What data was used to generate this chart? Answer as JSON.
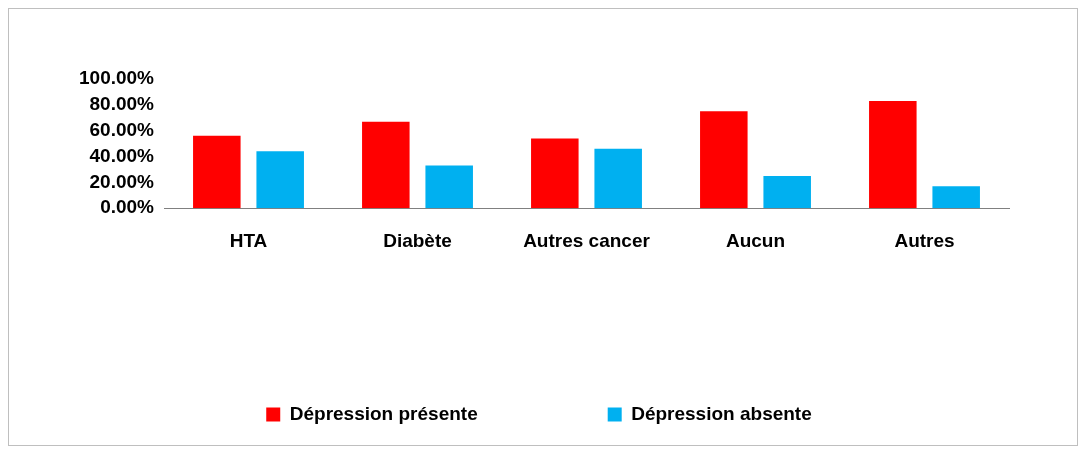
{
  "chart_data": {
    "type": "bar",
    "categories": [
      "HTA",
      "Diabète",
      "Autres cancer",
      "Aucun",
      "Autres"
    ],
    "series": [
      {
        "name": "Dépression présente",
        "color": "#ff0000",
        "values": [
          56,
          67,
          54,
          75,
          83
        ]
      },
      {
        "name": "Dépression absente",
        "color": "#00b0f0",
        "values": [
          44,
          33,
          46,
          25,
          17
        ]
      }
    ],
    "ylim": [
      0,
      100
    ],
    "yticks": [
      {
        "value": 0,
        "label": "0.00%"
      },
      {
        "value": 20,
        "label": "20.00%"
      },
      {
        "value": 40,
        "label": "40.00%"
      },
      {
        "value": 60,
        "label": "60.00%"
      },
      {
        "value": 80,
        "label": "80.00%"
      },
      {
        "value": 100,
        "label": "100.00%"
      }
    ],
    "grid": false,
    "legend": "bottom"
  }
}
